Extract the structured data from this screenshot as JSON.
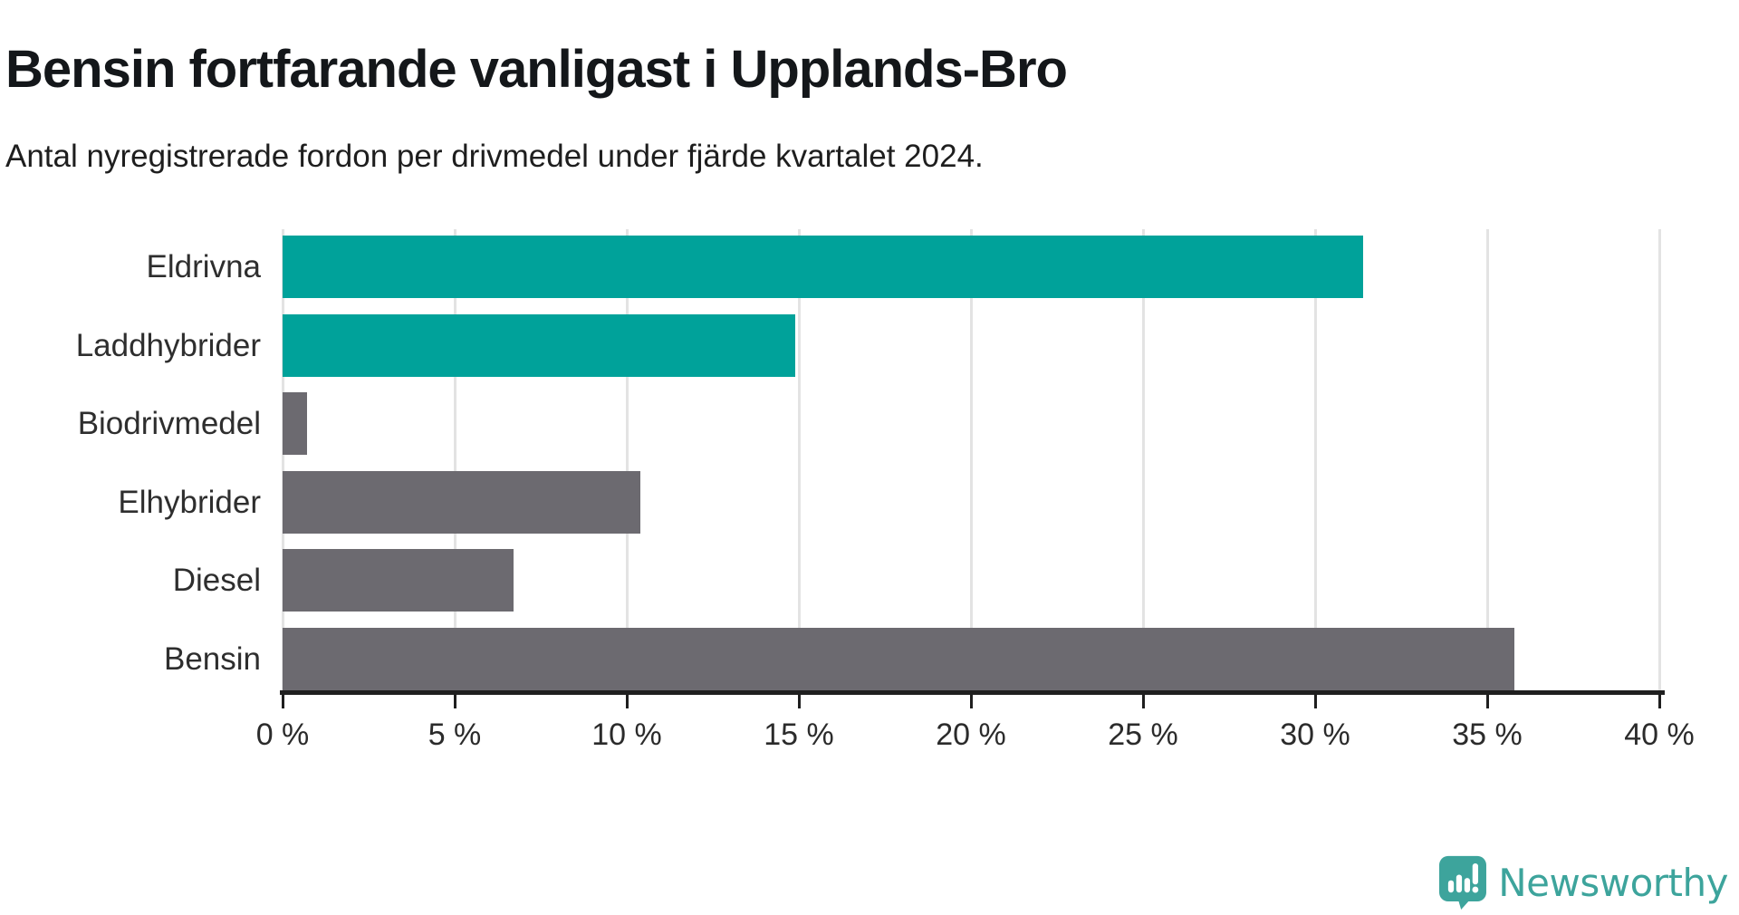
{
  "header": {
    "title": "Bensin fortfarande vanligast i Upplands-Bro",
    "subtitle": "Antal nyregistrerade fordon per drivmedel under fjärde kvartalet 2024."
  },
  "chart_data": {
    "type": "bar",
    "orientation": "horizontal",
    "title": "Bensin fortfarande vanligast i Upplands-Bro",
    "subtitle": "Antal nyregistrerade fordon per drivmedel under fjärde kvartalet 2024.",
    "categories": [
      "Eldrivna",
      "Laddhybrider",
      "Biodrivmedel",
      "Elhybrider",
      "Diesel",
      "Bensin"
    ],
    "values": [
      31.4,
      14.9,
      0.7,
      10.4,
      6.7,
      35.8
    ],
    "unit": "%",
    "bar_colors": [
      "#00a29a",
      "#00a29a",
      "#6c6a70",
      "#6c6a70",
      "#6c6a70",
      "#6c6a70"
    ],
    "xlabel": "",
    "ylabel": "",
    "xlim": [
      0,
      40
    ],
    "xticks": [
      0,
      5,
      10,
      15,
      20,
      25,
      30,
      35,
      40
    ],
    "xtick_labels": [
      "0 %",
      "5 %",
      "10 %",
      "15 %",
      "20 %",
      "25 %",
      "30 %",
      "35 %",
      "40 %"
    ],
    "grid": "vertical-on",
    "legend": "none",
    "highlight_color": "#00a29a",
    "default_color": "#6c6a70",
    "gridline_color": "#e3e3e3",
    "axis_color": "#1f1f1f"
  },
  "branding": {
    "logo_text": "Newsworthy",
    "logo_color": "#3da49c",
    "logo_icon": "speech-bubble-bar-chart-icon"
  }
}
